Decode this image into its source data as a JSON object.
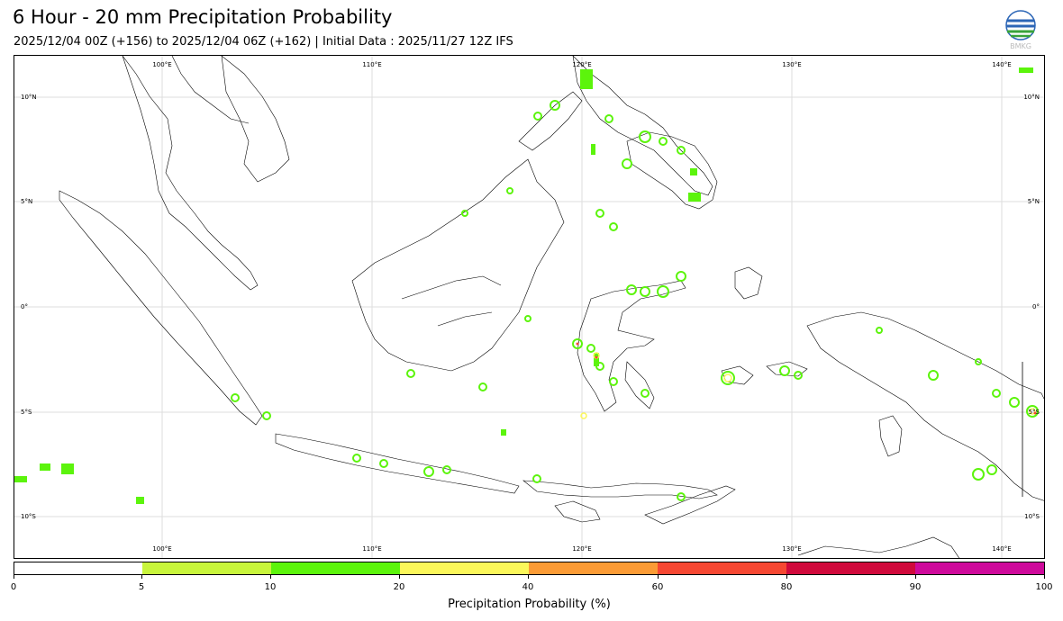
{
  "header": {
    "title": "6 Hour - 20 mm Precipitation Probability",
    "subtitle": "2025/12/04 00Z (+156) to 2025/12/04 06Z (+162) | Initial Data : 2025/11/27 12Z IFS",
    "logo_text": "BMKG"
  },
  "map": {
    "lon_labels": [
      "100°E",
      "110°E",
      "120°E",
      "130°E",
      "140°E"
    ],
    "lat_labels": [
      "10°N",
      "5°N",
      "0°",
      "5°S",
      "10°S"
    ],
    "land_outline_color": "#000000",
    "gridline_color": "#dddddd"
  },
  "colorbar": {
    "label": "Precipitation Probability (%)",
    "ticks": [
      "0",
      "5",
      "10",
      "20",
      "40",
      "60",
      "80",
      "90",
      "100"
    ],
    "colors": [
      "#ffffff",
      "#c8f53c",
      "#5cf40c",
      "#fbf75a",
      "#fb9b35",
      "#f64832",
      "#d00a3c",
      "#ce0a9b"
    ]
  }
}
